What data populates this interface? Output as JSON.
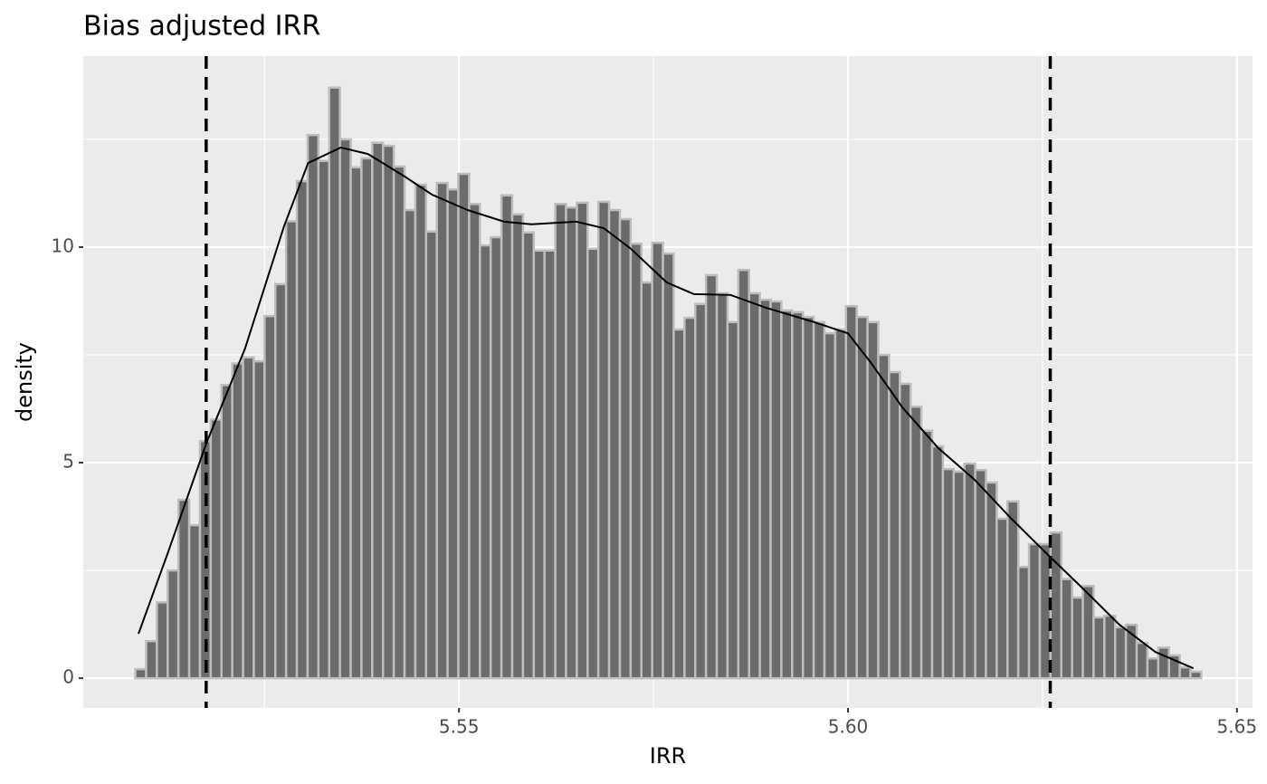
{
  "chart_data": {
    "type": "histogram",
    "title": "Bias adjusted IRR",
    "x_label": "IRR",
    "y_label": "density",
    "bins": [
      5.5084,
      5.509784,
      5.511168,
      5.512552,
      5.513936,
      5.51532,
      5.516704,
      5.518088,
      5.519472,
      5.520856,
      5.52224,
      5.523624,
      5.525008,
      5.526392,
      5.527776,
      5.52916,
      5.530544,
      5.531928,
      5.533312,
      5.534696,
      5.53608,
      5.537464,
      5.538848,
      5.540232,
      5.541616,
      5.543,
      5.544384,
      5.545768,
      5.547152,
      5.548536,
      5.54992,
      5.551304,
      5.552688,
      5.554072,
      5.555456,
      5.55684,
      5.558224,
      5.559608,
      5.560992,
      5.562376,
      5.56376,
      5.565144,
      5.566528,
      5.567912,
      5.569296,
      5.57068,
      5.572064,
      5.573448,
      5.574832,
      5.576216,
      5.5776,
      5.578984,
      5.580368,
      5.581752,
      5.583136,
      5.58452,
      5.585904,
      5.587288,
      5.588672,
      5.590056,
      5.59144,
      5.592824,
      5.594208,
      5.595592,
      5.596976,
      5.59836,
      5.599744,
      5.601128,
      5.602512,
      5.603896,
      5.60528,
      5.606664,
      5.608048,
      5.609432,
      5.610816,
      5.6122,
      5.613584,
      5.614968,
      5.616352,
      5.617736,
      5.61912,
      5.620504,
      5.621888,
      5.623272,
      5.624656,
      5.62604,
      5.627424,
      5.628808,
      5.630192,
      5.631576,
      5.63296,
      5.634344,
      5.635728,
      5.637112,
      5.638496,
      5.63988,
      5.641264,
      5.642648,
      5.644032,
      5.645416
    ],
    "values": [
      0.21,
      0.86,
      1.76,
      2.5,
      4.14,
      3.55,
      5.5,
      6.0,
      6.8,
      7.3,
      7.44,
      7.35,
      8.4,
      9.14,
      10.6,
      11.53,
      12.6,
      12.0,
      13.7,
      12.5,
      11.85,
      12.06,
      12.42,
      12.35,
      11.87,
      10.86,
      11.45,
      10.36,
      11.49,
      11.34,
      11.7,
      11.0,
      10.04,
      10.23,
      11.2,
      10.76,
      10.34,
      9.92,
      9.92,
      11.0,
      10.92,
      11.03,
      9.96,
      11.05,
      10.86,
      10.65,
      10.08,
      9.18,
      10.1,
      9.85,
      8.09,
      8.36,
      8.68,
      9.35,
      8.93,
      8.26,
      9.47,
      8.93,
      8.78,
      8.74,
      8.53,
      8.49,
      8.38,
      8.26,
      8.0,
      8.09,
      8.63,
      8.38,
      8.26,
      7.5,
      7.1,
      6.83,
      6.3,
      5.74,
      5.38,
      4.85,
      4.79,
      4.98,
      4.83,
      4.54,
      3.7,
      4.1,
      2.58,
      3.11,
      3.11,
      3.38,
      2.3,
      1.87,
      2.14,
      1.41,
      1.45,
      1.18,
      1.24,
      0.82,
      0.46,
      0.71,
      0.53,
      0.25,
      0.15
    ],
    "color": "#6b6b6b",
    "edge_color": "#bdbdbd",
    "density": {
      "color": "#000000",
      "x": [
        5.5088,
        5.5126,
        5.5175,
        5.5225,
        5.5275,
        5.5306,
        5.5348,
        5.5383,
        5.543,
        5.5465,
        5.5511,
        5.5558,
        5.5593,
        5.5651,
        5.5686,
        5.5721,
        5.5767,
        5.5802,
        5.5849,
        5.5895,
        5.5953,
        5.6,
        5.6029,
        5.607,
        5.6116,
        5.6163,
        5.6209,
        5.6256,
        5.6302,
        5.6349,
        5.6395,
        5.6444
      ],
      "y": [
        1.03,
        2.92,
        5.44,
        7.65,
        10.48,
        11.95,
        12.31,
        12.16,
        11.64,
        11.22,
        10.86,
        10.59,
        10.53,
        10.59,
        10.44,
        9.96,
        9.18,
        8.91,
        8.89,
        8.59,
        8.28,
        8.0,
        7.33,
        6.28,
        5.34,
        4.6,
        3.72,
        2.88,
        2.08,
        1.24,
        0.61,
        0.23
      ]
    },
    "vlines": [
      5.5175,
      5.626
    ],
    "xlim": [
      5.5017,
      5.652
    ],
    "ylim": [
      -0.69,
      14.43
    ],
    "xticks": [
      5.55,
      {
        "value": 5.6,
        "label": "5.60"
      },
      5.65
    ],
    "yticks": [
      0,
      5,
      10
    ],
    "xminor": [
      5.525,
      5.575,
      5.625
    ],
    "yminor": [
      2.5,
      7.5,
      12.5
    ],
    "grid": true
  }
}
